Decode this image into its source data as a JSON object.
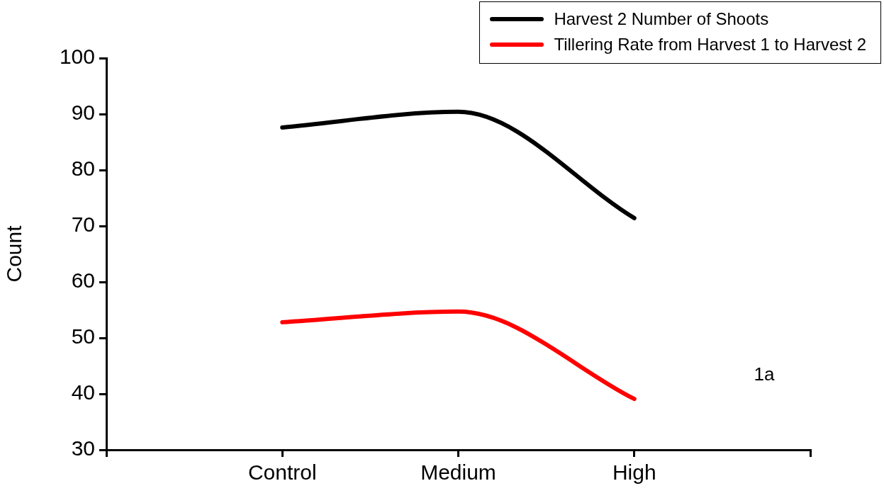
{
  "chart_data": {
    "type": "line",
    "ylabel": "Count",
    "categories": [
      null,
      "Control",
      "Medium",
      "High",
      null
    ],
    "series": [
      {
        "name": "Harvest 2 Number of Shoots",
        "color": "#000000",
        "values": [
          null,
          87.6,
          90.4,
          71.4,
          null
        ]
      },
      {
        "name": "Tillering Rate from Harvest 1 to Harvest 2",
        "color": "#ff0000",
        "values": [
          null,
          52.8,
          54.7,
          39.1,
          null
        ]
      }
    ],
    "ylim": [
      30,
      100
    ],
    "yticks": [
      30,
      40,
      50,
      60,
      70,
      80,
      90,
      100
    ],
    "grid": false,
    "legend": "top right",
    "marker": "none",
    "line_style": "solid",
    "annotations": [
      "1a"
    ]
  }
}
